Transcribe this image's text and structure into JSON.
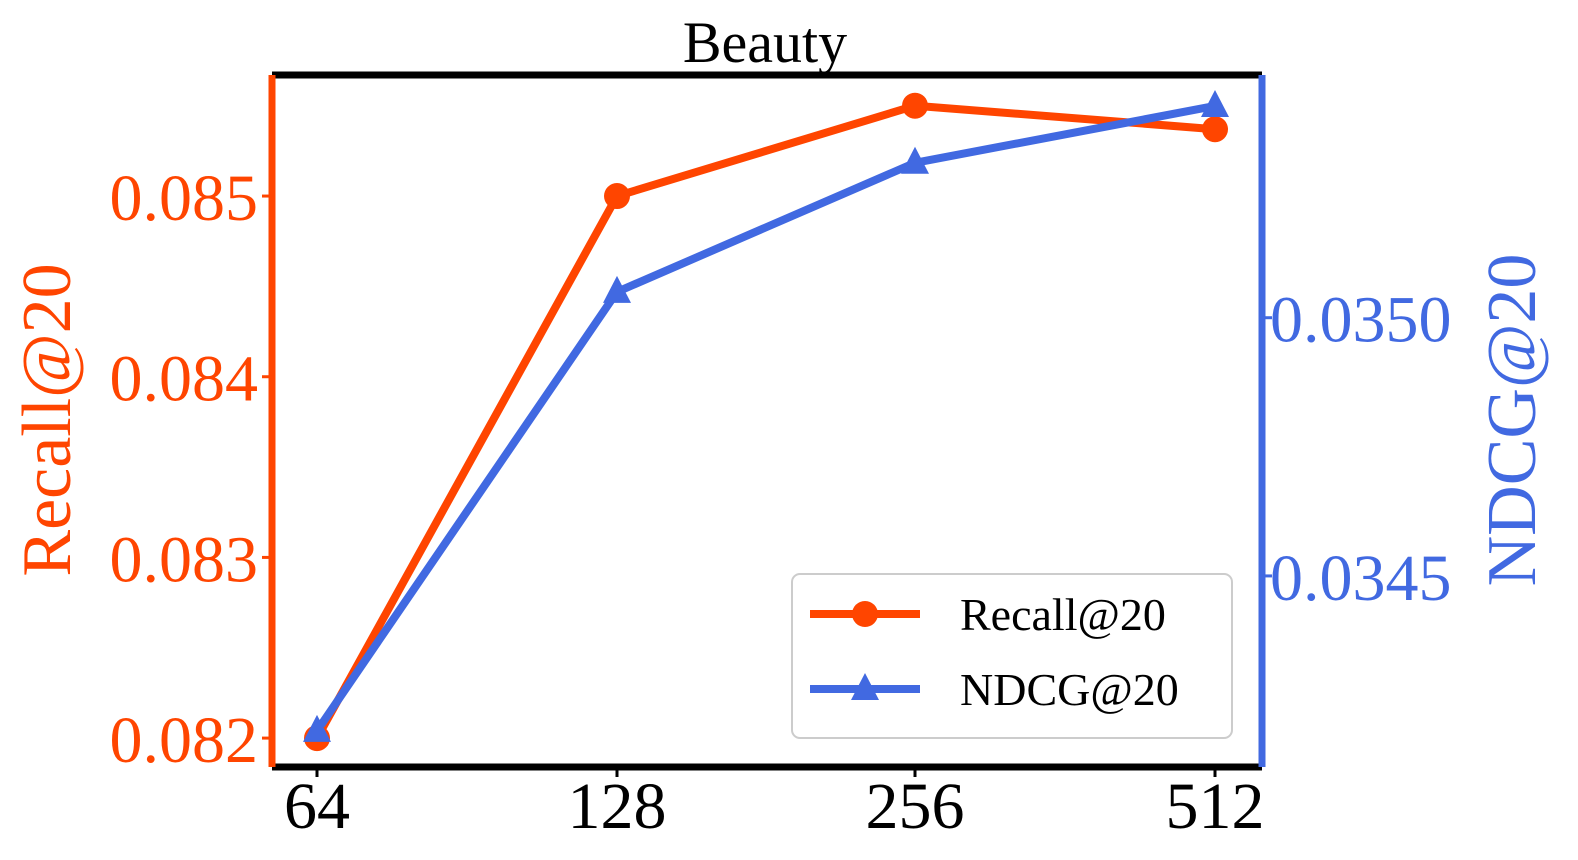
{
  "chart_data": {
    "type": "line",
    "title": "Beauty",
    "categories": [
      "64",
      "128",
      "256",
      "512"
    ],
    "xlabel": "",
    "y_left": {
      "label": "Recall@20",
      "ticks": [
        "0.082",
        "0.083",
        "0.084",
        "0.085"
      ],
      "tick_values": [
        0.082,
        0.083,
        0.084,
        0.085
      ],
      "ylim": [
        0.08184,
        0.08567
      ],
      "color": "#ff4500"
    },
    "y_right": {
      "label": "NDCG@20",
      "ticks": [
        "0.0345",
        "0.0350"
      ],
      "tick_values": [
        0.0345,
        0.035
      ],
      "ylim": [
        0.03413,
        0.03547
      ],
      "color": "#4169e1"
    },
    "series": [
      {
        "name": "Recall@20",
        "axis": "left",
        "marker": "circle",
        "color": "#ff4500",
        "values": [
          0.082,
          0.085,
          0.0855,
          0.08537
        ]
      },
      {
        "name": "NDCG@20",
        "axis": "right",
        "marker": "triangle",
        "color": "#4169e1",
        "values": [
          0.0342,
          0.03505,
          0.0353,
          0.03541
        ]
      }
    ],
    "legend": {
      "placement": "lower-right",
      "entries": [
        "Recall@20",
        "NDCG@20"
      ]
    },
    "grid": false
  }
}
